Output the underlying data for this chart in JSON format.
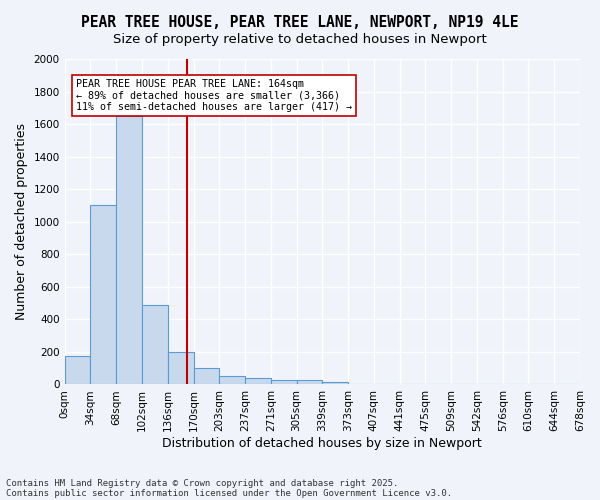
{
  "title1": "PEAR TREE HOUSE, PEAR TREE LANE, NEWPORT, NP19 4LE",
  "title2": "Size of property relative to detached houses in Newport",
  "xlabel": "Distribution of detached houses by size in Newport",
  "ylabel": "Number of detached properties",
  "bar_values": [
    175,
    1100,
    1650,
    490,
    200,
    100,
    50,
    40,
    25,
    25,
    15,
    5,
    3,
    2,
    1,
    1,
    0,
    0,
    0,
    0
  ],
  "bar_labels": [
    "0sqm",
    "34sqm",
    "68sqm",
    "102sqm",
    "136sqm",
    "170sqm",
    "203sqm",
    "237sqm",
    "271sqm",
    "305sqm",
    "339sqm",
    "373sqm",
    "407sqm",
    "441sqm",
    "475sqm",
    "509sqm",
    "542sqm",
    "576sqm",
    "610sqm",
    "644sqm",
    "678sqm"
  ],
  "bar_color": "#c8d9ed",
  "bar_edge_color": "#5b9bd5",
  "vline_x": 4.75,
  "vline_color": "#c00000",
  "ylim": [
    0,
    2000
  ],
  "yticks": [
    0,
    200,
    400,
    600,
    800,
    1000,
    1200,
    1400,
    1600,
    1800,
    2000
  ],
  "annotation_text": "PEAR TREE HOUSE PEAR TREE LANE: 164sqm\n← 89% of detached houses are smaller (3,366)\n11% of semi-detached houses are larger (417) →",
  "annotation_box_color": "#ffffff",
  "annotation_box_edge": "#c00000",
  "footer1": "Contains HM Land Registry data © Crown copyright and database right 2025.",
  "footer2": "Contains public sector information licensed under the Open Government Licence v3.0.",
  "bg_color": "#f0f4fa",
  "grid_color": "#ffffff",
  "title_fontsize": 10.5,
  "axis_label_fontsize": 9,
  "tick_fontsize": 7.5
}
